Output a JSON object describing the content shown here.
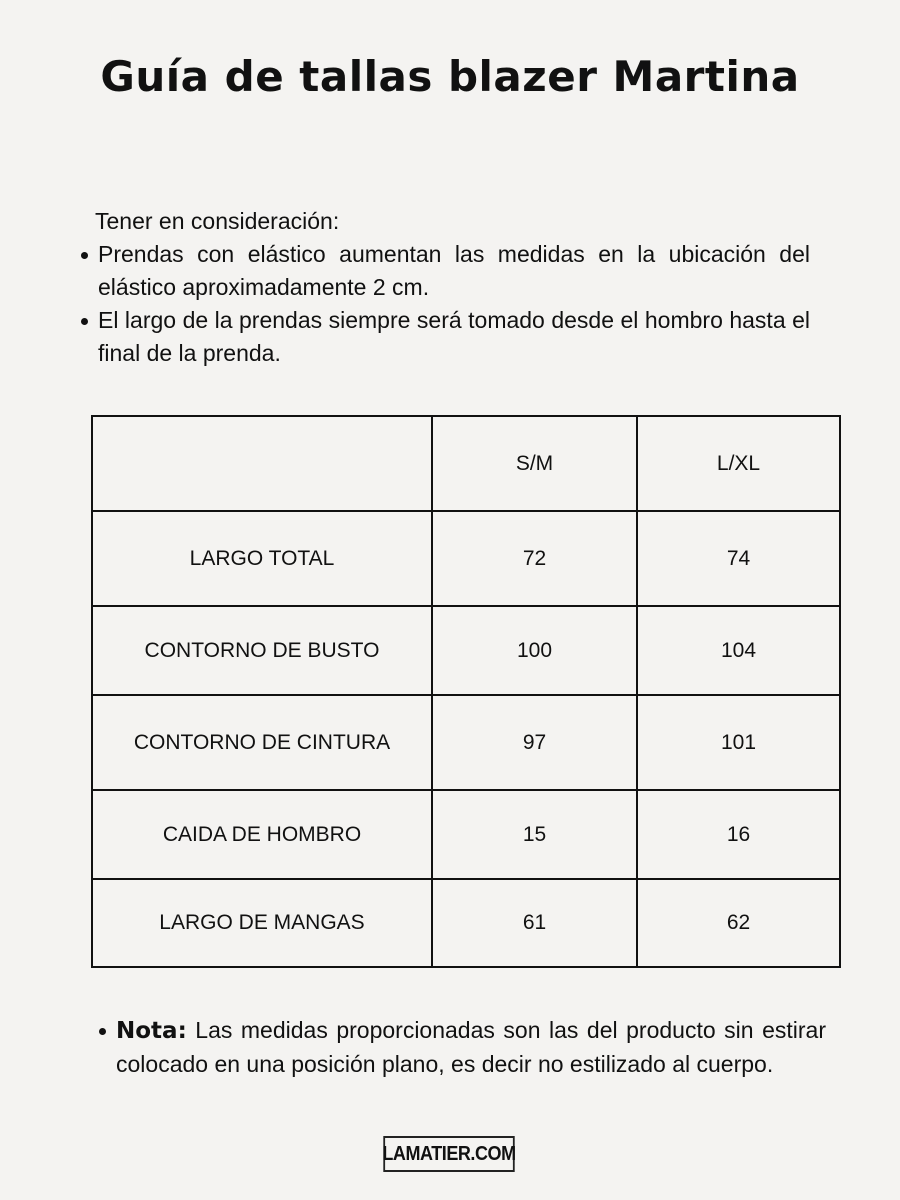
{
  "title": "Guía de tallas blazer Martina",
  "intro": {
    "lead": "Tener en consideración:",
    "bullets": [
      "Prendas con elástico aumentan las medidas en la ubicación del elástico aproximadamente 2 cm.",
      "El largo de la prendas siempre será tomado desde el hombro hasta el final de la prenda."
    ]
  },
  "table": {
    "headers": [
      "",
      "S/M",
      "L/XL"
    ],
    "rows": [
      [
        "LARGO TOTAL",
        "72",
        "74"
      ],
      [
        "CONTORNO DE BUSTO",
        "100",
        "104"
      ],
      [
        "CONTORNO DE CINTURA",
        "97",
        "101"
      ],
      [
        "CAIDA DE HOMBRO",
        "15",
        "16"
      ],
      [
        "LARGO DE MANGAS",
        "61",
        "62"
      ]
    ]
  },
  "note": {
    "label": "Nota:",
    "text": " Las medidas proporcionadas son las del producto sin estirar colocado en una posición plano, es decir no estilizado al cuerpo."
  },
  "logo": "LAMATIER.COM"
}
